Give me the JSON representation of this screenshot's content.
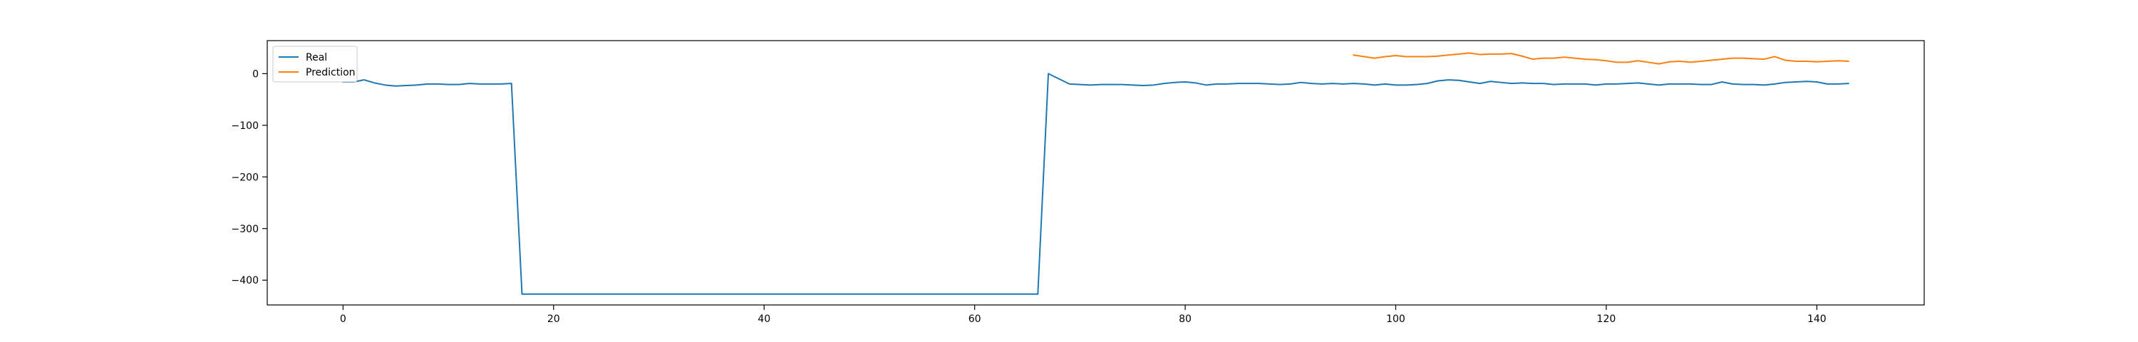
{
  "chart_data": {
    "type": "line",
    "title": "",
    "xlabel": "",
    "ylabel": "",
    "xlim": [
      -7.2,
      150.2
    ],
    "ylim": [
      -448,
      64
    ],
    "x_ticks": [
      0,
      20,
      40,
      60,
      80,
      100,
      120,
      140
    ],
    "y_ticks": [
      0,
      -100,
      -200,
      -300,
      -400
    ],
    "grid": false,
    "legend_position": "top-left",
    "series": [
      {
        "name": "Real",
        "color": "#1f77b4",
        "x_start": 0,
        "values": [
          -16,
          -16,
          -12,
          -18,
          -22,
          -24,
          -23,
          -22,
          -20,
          -20,
          -21,
          -21,
          -19,
          -20,
          -20,
          -20,
          -19,
          -427,
          -427,
          -427,
          -427,
          -427,
          -427,
          -427,
          -427,
          -427,
          -427,
          -427,
          -427,
          -427,
          -427,
          -427,
          -427,
          -427,
          -427,
          -427,
          -427,
          -427,
          -427,
          -427,
          -427,
          -427,
          -427,
          -427,
          -427,
          -427,
          -427,
          -427,
          -427,
          -427,
          -427,
          -427,
          -427,
          -427,
          -427,
          -427,
          -427,
          -427,
          -427,
          -427,
          -427,
          -427,
          -427,
          -427,
          -427,
          -427,
          -427,
          0,
          -10,
          -20,
          -21,
          -22,
          -21,
          -21,
          -21,
          -22,
          -23,
          -22,
          -19,
          -17,
          -16,
          -18,
          -22,
          -20,
          -20,
          -19,
          -19,
          -19,
          -20,
          -21,
          -20,
          -17,
          -19,
          -20,
          -19,
          -20,
          -19,
          -20,
          -22,
          -20,
          -22,
          -22,
          -21,
          -19,
          -14,
          -12,
          -13,
          -16,
          -19,
          -15,
          -17,
          -19,
          -18,
          -19,
          -19,
          -21,
          -20,
          -20,
          -20,
          -22,
          -20,
          -20,
          -19,
          -18,
          -20,
          -22,
          -20,
          -20,
          -20,
          -21,
          -21,
          -16,
          -20,
          -21,
          -21,
          -22,
          -20,
          -17,
          -16,
          -15,
          -16,
          -20,
          -20,
          -19
        ]
      },
      {
        "name": "Prediction",
        "color": "#ff7f0e",
        "x_start": 96,
        "values": [
          36,
          33,
          30,
          33,
          35,
          33,
          33,
          33,
          34,
          36,
          38,
          40,
          37,
          38,
          38,
          39,
          34,
          28,
          30,
          30,
          32,
          30,
          28,
          27,
          25,
          22,
          22,
          25,
          22,
          19,
          23,
          24,
          22,
          24,
          26,
          28,
          30,
          30,
          29,
          28,
          33,
          26,
          24,
          24,
          23,
          24,
          25,
          24
        ]
      }
    ]
  }
}
